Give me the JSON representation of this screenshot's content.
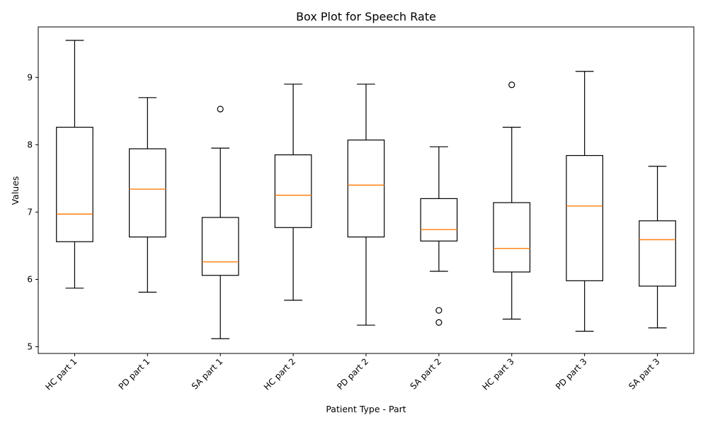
{
  "chart_data": {
    "type": "box",
    "title": "Box Plot for Speech Rate",
    "xlabel": "Patient Type - Part",
    "ylabel": "Values",
    "ylim": [
      4.9,
      9.75
    ],
    "yticks": [
      5,
      6,
      7,
      8,
      9
    ],
    "grid": false,
    "categories": [
      "HC part 1",
      "PD part 1",
      "SA part 1",
      "HC part 2",
      "PD part 2",
      "SA part 2",
      "HC part 3",
      "PD part 3",
      "SA part 3"
    ],
    "boxes": [
      {
        "label": "HC part 1",
        "whisker_low": 5.87,
        "q1": 6.56,
        "median": 6.97,
        "q3": 8.26,
        "whisker_high": 9.55,
        "outliers": []
      },
      {
        "label": "PD part 1",
        "whisker_low": 5.81,
        "q1": 6.63,
        "median": 7.34,
        "q3": 7.94,
        "whisker_high": 8.7,
        "outliers": []
      },
      {
        "label": "SA part 1",
        "whisker_low": 5.12,
        "q1": 6.06,
        "median": 6.26,
        "q3": 6.92,
        "whisker_high": 7.95,
        "outliers": [
          8.53
        ]
      },
      {
        "label": "HC part 2",
        "whisker_low": 5.69,
        "q1": 6.77,
        "median": 7.25,
        "q3": 7.85,
        "whisker_high": 8.9,
        "outliers": []
      },
      {
        "label": "PD part 2",
        "whisker_low": 5.32,
        "q1": 6.63,
        "median": 7.4,
        "q3": 8.07,
        "whisker_high": 8.9,
        "outliers": []
      },
      {
        "label": "SA part 2",
        "whisker_low": 6.12,
        "q1": 6.57,
        "median": 6.74,
        "q3": 7.2,
        "whisker_high": 7.97,
        "outliers": [
          5.54,
          5.36
        ]
      },
      {
        "label": "HC part 3",
        "whisker_low": 5.41,
        "q1": 6.11,
        "median": 6.46,
        "q3": 7.14,
        "whisker_high": 8.26,
        "outliers": [
          8.89
        ]
      },
      {
        "label": "PD part 3",
        "whisker_low": 5.23,
        "q1": 5.98,
        "median": 7.09,
        "q3": 7.84,
        "whisker_high": 9.09,
        "outliers": []
      },
      {
        "label": "SA part 3",
        "whisker_low": 5.28,
        "q1": 5.9,
        "median": 6.59,
        "q3": 6.87,
        "whisker_high": 7.68,
        "outliers": []
      }
    ],
    "colors": {
      "box": "#000000",
      "median": "#ff7f0e",
      "outlier": "#000000"
    }
  }
}
